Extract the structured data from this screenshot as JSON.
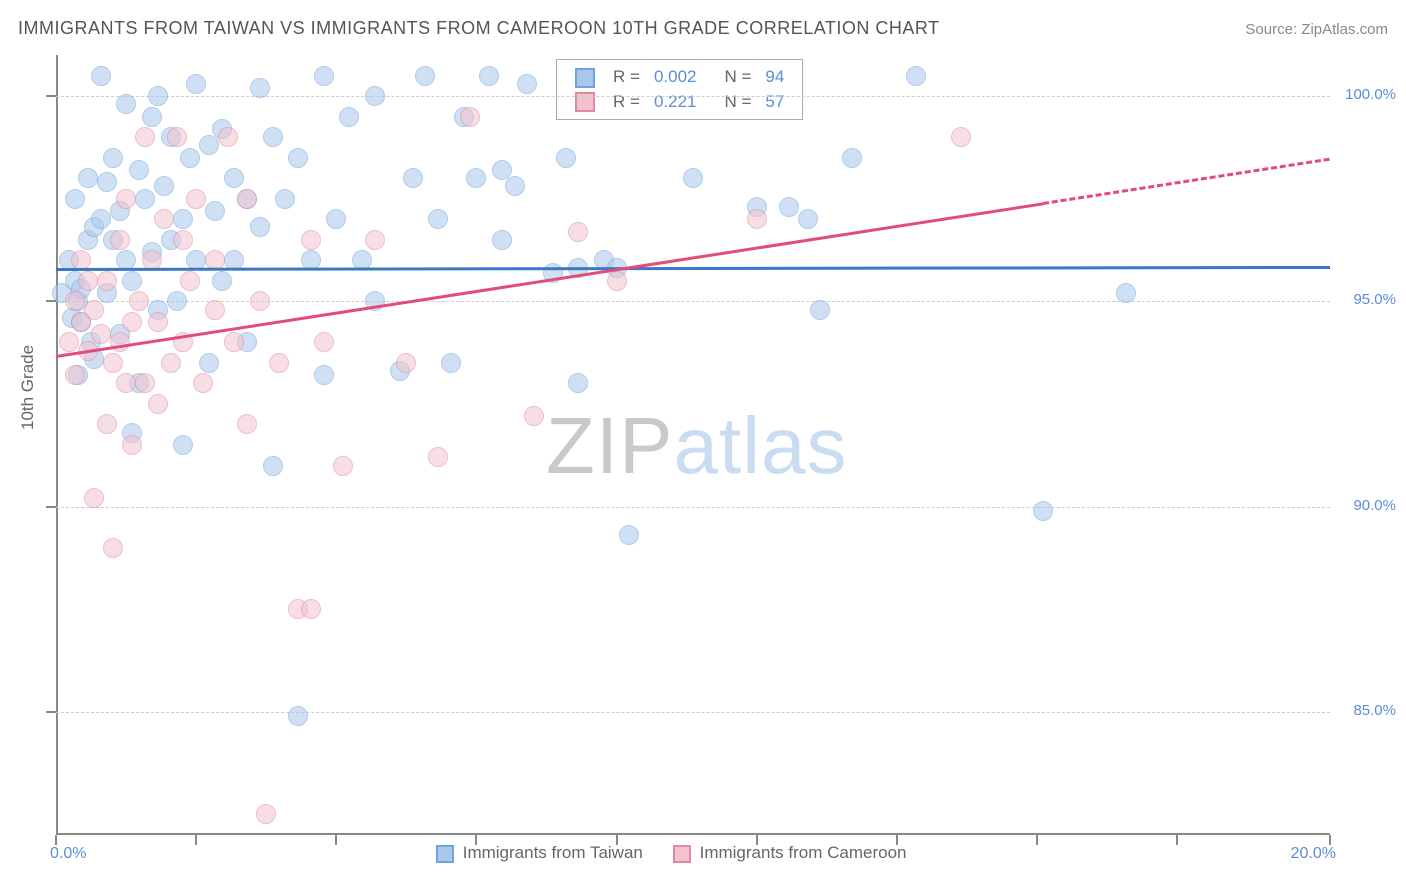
{
  "title": "IMMIGRANTS FROM TAIWAN VS IMMIGRANTS FROM CAMEROON 10TH GRADE CORRELATION CHART",
  "source_prefix": "Source: ",
  "source_name": "ZipAtlas.com",
  "y_axis_title": "10th Grade",
  "watermark": {
    "z": "Z",
    "ip": "IP",
    "atlas": "atlas"
  },
  "chart": {
    "type": "scatter",
    "background_color": "#ffffff",
    "grid_color": "#cccccc",
    "border_color": "#888888",
    "xlim": [
      0,
      20
    ],
    "ylim": [
      82,
      101
    ],
    "x_ticks": [
      0,
      2.2,
      4.4,
      6.6,
      8.8,
      11.0,
      13.2,
      15.4,
      17.6,
      20
    ],
    "y_gridlines": [
      85,
      90,
      95,
      100
    ],
    "y_tick_labels": [
      "85.0%",
      "90.0%",
      "95.0%",
      "100.0%"
    ],
    "x_start_label": "0.0%",
    "x_end_label": "20.0%",
    "axis_label_color": "#5b8dd6",
    "axis_label_fontsize": 15,
    "marker_radius": 10,
    "marker_opacity": 0.55
  },
  "series": [
    {
      "name": "Immigrants from Taiwan",
      "fill": "#a9c8ec",
      "stroke": "#6fa4dc",
      "line_color": "#3b78c4",
      "r_label": "R =",
      "r_value": "0.002",
      "n_label": "N =",
      "n_value": "94",
      "regression": {
        "x0": 0,
        "y0": 95.8,
        "x1": 20,
        "y1": 95.85,
        "dashed": false
      },
      "points": [
        [
          0.1,
          95.2
        ],
        [
          0.2,
          96.0
        ],
        [
          0.25,
          94.6
        ],
        [
          0.3,
          95.5
        ],
        [
          0.3,
          97.5
        ],
        [
          0.35,
          95.0
        ],
        [
          0.35,
          93.2
        ],
        [
          0.4,
          95.3
        ],
        [
          0.4,
          94.5
        ],
        [
          0.5,
          98.0
        ],
        [
          0.5,
          96.5
        ],
        [
          0.55,
          94.0
        ],
        [
          0.6,
          93.6
        ],
        [
          0.6,
          96.8
        ],
        [
          0.7,
          97.0
        ],
        [
          0.7,
          100.5
        ],
        [
          0.8,
          97.9
        ],
        [
          0.8,
          95.2
        ],
        [
          0.9,
          96.5
        ],
        [
          0.9,
          98.5
        ],
        [
          1.0,
          94.2
        ],
        [
          1.0,
          97.2
        ],
        [
          1.1,
          99.8
        ],
        [
          1.1,
          96.0
        ],
        [
          1.2,
          95.5
        ],
        [
          1.2,
          91.8
        ],
        [
          1.3,
          98.2
        ],
        [
          1.3,
          93.0
        ],
        [
          1.4,
          97.5
        ],
        [
          1.5,
          99.5
        ],
        [
          1.5,
          96.2
        ],
        [
          1.6,
          100.0
        ],
        [
          1.6,
          94.8
        ],
        [
          1.7,
          97.8
        ],
        [
          1.8,
          96.5
        ],
        [
          1.8,
          99.0
        ],
        [
          1.9,
          95.0
        ],
        [
          2.0,
          91.5
        ],
        [
          2.0,
          97.0
        ],
        [
          2.1,
          98.5
        ],
        [
          2.2,
          100.3
        ],
        [
          2.2,
          96.0
        ],
        [
          2.4,
          98.8
        ],
        [
          2.4,
          93.5
        ],
        [
          2.5,
          97.2
        ],
        [
          2.6,
          99.2
        ],
        [
          2.6,
          95.5
        ],
        [
          2.8,
          96.0
        ],
        [
          2.8,
          98.0
        ],
        [
          3.0,
          97.5
        ],
        [
          3.0,
          94.0
        ],
        [
          3.2,
          100.2
        ],
        [
          3.2,
          96.8
        ],
        [
          3.4,
          99.0
        ],
        [
          3.4,
          91.0
        ],
        [
          3.6,
          97.5
        ],
        [
          3.8,
          84.9
        ],
        [
          3.8,
          98.5
        ],
        [
          4.0,
          96.0
        ],
        [
          4.2,
          100.5
        ],
        [
          4.2,
          93.2
        ],
        [
          4.4,
          97.0
        ],
        [
          4.6,
          99.5
        ],
        [
          4.8,
          96.0
        ],
        [
          5.0,
          100.0
        ],
        [
          5.0,
          95.0
        ],
        [
          5.4,
          93.3
        ],
        [
          5.6,
          98.0
        ],
        [
          5.8,
          100.5
        ],
        [
          6.0,
          97.0
        ],
        [
          6.2,
          93.5
        ],
        [
          6.4,
          99.5
        ],
        [
          6.6,
          98.0
        ],
        [
          6.8,
          100.5
        ],
        [
          7.0,
          96.5
        ],
        [
          7.0,
          98.2
        ],
        [
          7.2,
          97.8
        ],
        [
          7.4,
          100.3
        ],
        [
          7.8,
          95.7
        ],
        [
          8.0,
          98.5
        ],
        [
          8.2,
          95.8
        ],
        [
          8.2,
          93.0
        ],
        [
          8.6,
          96.0
        ],
        [
          8.8,
          95.8
        ],
        [
          9.0,
          89.3
        ],
        [
          10.0,
          98.0
        ],
        [
          11.0,
          97.3
        ],
        [
          11.5,
          97.3
        ],
        [
          11.8,
          97.0
        ],
        [
          12.0,
          94.8
        ],
        [
          12.5,
          98.5
        ],
        [
          13.5,
          100.5
        ],
        [
          15.5,
          89.9
        ],
        [
          16.8,
          95.2
        ]
      ]
    },
    {
      "name": "Immigrants from Cameroon",
      "fill": "#f2c2cf",
      "stroke": "#e08aa2",
      "line_color": "#e24b7a",
      "r_label": "R =",
      "r_value": "0.221",
      "n_label": "N =",
      "n_value": "57",
      "regression": {
        "x0": 0,
        "y0": 93.7,
        "x1": 20,
        "y1": 98.5,
        "dashed_from_x": 15.5
      },
      "points": [
        [
          0.2,
          94.0
        ],
        [
          0.3,
          95.0
        ],
        [
          0.3,
          93.2
        ],
        [
          0.4,
          94.5
        ],
        [
          0.4,
          96.0
        ],
        [
          0.5,
          95.5
        ],
        [
          0.5,
          93.8
        ],
        [
          0.6,
          94.8
        ],
        [
          0.6,
          90.2
        ],
        [
          0.7,
          94.2
        ],
        [
          0.8,
          95.5
        ],
        [
          0.8,
          92.0
        ],
        [
          0.9,
          93.5
        ],
        [
          0.9,
          89.0
        ],
        [
          1.0,
          96.5
        ],
        [
          1.0,
          94.0
        ],
        [
          1.1,
          93.0
        ],
        [
          1.1,
          97.5
        ],
        [
          1.2,
          94.5
        ],
        [
          1.2,
          91.5
        ],
        [
          1.3,
          95.0
        ],
        [
          1.4,
          93.0
        ],
        [
          1.4,
          99.0
        ],
        [
          1.5,
          96.0
        ],
        [
          1.6,
          94.5
        ],
        [
          1.6,
          92.5
        ],
        [
          1.7,
          97.0
        ],
        [
          1.8,
          93.5
        ],
        [
          1.9,
          99.0
        ],
        [
          2.0,
          96.5
        ],
        [
          2.0,
          94.0
        ],
        [
          2.1,
          95.5
        ],
        [
          2.2,
          97.5
        ],
        [
          2.3,
          93.0
        ],
        [
          2.5,
          96.0
        ],
        [
          2.5,
          94.8
        ],
        [
          2.7,
          99.0
        ],
        [
          2.8,
          94.0
        ],
        [
          3.0,
          92.0
        ],
        [
          3.0,
          97.5
        ],
        [
          3.2,
          95.0
        ],
        [
          3.3,
          82.5
        ],
        [
          3.5,
          93.5
        ],
        [
          3.8,
          87.5
        ],
        [
          4.0,
          96.5
        ],
        [
          4.0,
          87.5
        ],
        [
          4.2,
          94.0
        ],
        [
          4.5,
          91.0
        ],
        [
          5.0,
          96.5
        ],
        [
          5.5,
          93.5
        ],
        [
          6.0,
          91.2
        ],
        [
          6.5,
          99.5
        ],
        [
          7.5,
          92.2
        ],
        [
          8.2,
          96.7
        ],
        [
          8.8,
          95.5
        ],
        [
          11.0,
          97.0
        ],
        [
          14.2,
          99.0
        ]
      ]
    }
  ],
  "legend_bottom": {
    "label_a": "Immigrants from Taiwan",
    "label_b": "Immigrants from Cameroon"
  }
}
